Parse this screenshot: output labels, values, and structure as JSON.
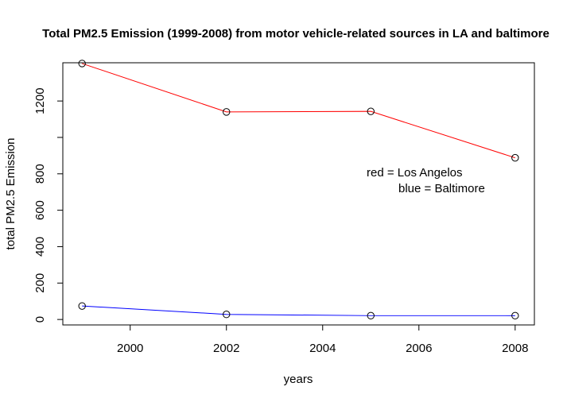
{
  "chart_data": {
    "type": "line",
    "title": "Total PM2.5 Emission (1999-2008) from motor vehicle-related sources in LA and baltimore",
    "xlabel": "years",
    "ylabel": "total PM2.5 Emission",
    "x": [
      1999,
      2002,
      2005,
      2008
    ],
    "xlim": [
      1998.6,
      2008.4
    ],
    "ylim": [
      -30,
      1410
    ],
    "x_ticks": [
      2000,
      2002,
      2004,
      2006,
      2008
    ],
    "y_ticks": [
      0,
      200,
      400,
      600,
      800,
      1000,
      1200
    ],
    "y_tick_labels": [
      "0",
      "200",
      "400",
      "600",
      "800",
      "",
      "1200"
    ],
    "series": [
      {
        "name": "Los Angelos",
        "color": "#ff0000",
        "values": [
          1406,
          1140,
          1143,
          888
        ]
      },
      {
        "name": "Baltimore",
        "color": "#0000ff",
        "values": [
          74,
          28,
          21,
          21
        ]
      }
    ],
    "legend": [
      "red = Los Angelos",
      "blue = Baltimore"
    ],
    "legend_placement": "right",
    "point_marker": "open-circle",
    "grid": false
  }
}
